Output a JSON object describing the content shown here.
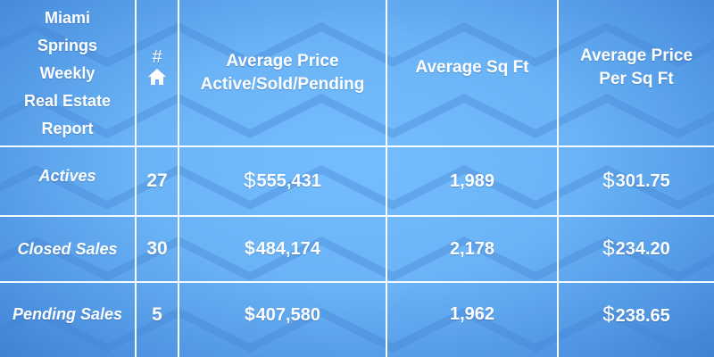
{
  "report": {
    "title_lines": [
      "Miami",
      "Springs",
      "Weekly",
      "Real Estate",
      "Report"
    ],
    "count_header": "#",
    "count_icon": "house-icon",
    "col_avg_price": [
      "Average Price",
      "Active/Sold/Pending"
    ],
    "col_avg_sqft": "Average Sq Ft",
    "col_avg_price_sqft": [
      "Average Price",
      "Per Sq Ft"
    ],
    "currency_symbol": "$"
  },
  "rows": [
    {
      "label": "Actives",
      "count": "27",
      "avg_price": "555,431",
      "avg_sqft": "1,989",
      "price_per_sqft": "301.75"
    },
    {
      "label": "Closed Sales",
      "count": "30",
      "avg_price": "484,174",
      "avg_sqft": "2,178",
      "price_per_sqft": "234.20"
    },
    {
      "label": "Pending Sales",
      "count": "5",
      "avg_price": "407,580",
      "avg_sqft": "1,962",
      "price_per_sqft": "238.65"
    }
  ],
  "colors": {
    "background": "#6ab3f6",
    "grid_lines": "#ffffff",
    "text": "#ffffff"
  }
}
